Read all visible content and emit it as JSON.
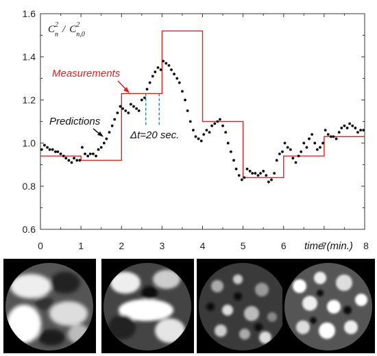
{
  "chart_data": {
    "type": "line",
    "title": "",
    "xlabel": "time (min.)",
    "ylabel_parts": {
      "num": "C",
      "num_sup": "2",
      "num_sub": "n",
      "slash": "/",
      "den": "C",
      "den_sup": "2",
      "den_sub": "n,0"
    },
    "xlim": [
      0,
      8
    ],
    "ylim": [
      0.6,
      1.6
    ],
    "xticks": [
      "0",
      "1",
      "2",
      "3",
      "4",
      "5",
      "6",
      "7",
      "8"
    ],
    "yticks": [
      "0.6",
      "0.8",
      "1.0",
      "1.2",
      "1.4",
      "1.6"
    ],
    "grid": false,
    "series": [
      {
        "name": "Measurements",
        "style": "step",
        "color": "#e02020",
        "x": [
          0,
          1,
          1,
          2,
          2,
          3,
          3,
          4,
          4,
          5,
          5,
          6,
          6,
          7,
          7,
          8
        ],
        "y": [
          0.94,
          0.94,
          0.92,
          0.92,
          1.23,
          1.23,
          1.52,
          1.52,
          1.1,
          1.1,
          0.84,
          0.84,
          0.94,
          0.94,
          1.03,
          1.03
        ]
      },
      {
        "name": "Predictions",
        "style": "points",
        "color": "#000000",
        "x": [
          0.03,
          0.1,
          0.17,
          0.23,
          0.3,
          0.37,
          0.43,
          0.5,
          0.57,
          0.63,
          0.7,
          0.77,
          0.83,
          0.9,
          0.97,
          1.03,
          1.1,
          1.17,
          1.23,
          1.3,
          1.37,
          1.43,
          1.5,
          1.57,
          1.63,
          1.7,
          1.77,
          1.83,
          1.9,
          1.97,
          2.03,
          2.1,
          2.17,
          2.23,
          2.3,
          2.37,
          2.43,
          2.5,
          2.57,
          2.63,
          2.7,
          2.77,
          2.83,
          2.9,
          2.97,
          3.03,
          3.1,
          3.17,
          3.23,
          3.3,
          3.37,
          3.43,
          3.5,
          3.57,
          3.63,
          3.7,
          3.77,
          3.83,
          3.9,
          3.97,
          4.03,
          4.1,
          4.17,
          4.23,
          4.3,
          4.37,
          4.43,
          4.5,
          4.57,
          4.63,
          4.7,
          4.77,
          4.83,
          4.9,
          4.97,
          5.03,
          5.1,
          5.17,
          5.23,
          5.3,
          5.37,
          5.43,
          5.5,
          5.57,
          5.63,
          5.7,
          5.77,
          5.83,
          5.9,
          5.97,
          6.03,
          6.1,
          6.17,
          6.23,
          6.3,
          6.37,
          6.43,
          6.5,
          6.57,
          6.63,
          6.7,
          6.77,
          6.83,
          6.9,
          6.97,
          7.03,
          7.1,
          7.17,
          7.23,
          7.3,
          7.37,
          7.43,
          7.5,
          7.57,
          7.63,
          7.7,
          7.77,
          7.83,
          7.9,
          7.97
        ],
        "y": [
          0.97,
          0.99,
          0.98,
          0.97,
          0.97,
          0.96,
          0.96,
          0.95,
          0.94,
          0.93,
          0.92,
          0.91,
          0.93,
          0.92,
          0.92,
          0.98,
          0.95,
          0.94,
          0.95,
          0.95,
          0.94,
          0.97,
          0.98,
          1.0,
          1.02,
          1.05,
          1.08,
          1.11,
          1.14,
          1.17,
          1.16,
          1.15,
          1.14,
          1.18,
          1.17,
          1.16,
          1.15,
          1.2,
          1.21,
          1.25,
          1.28,
          1.31,
          1.33,
          1.35,
          1.34,
          1.38,
          1.37,
          1.36,
          1.34,
          1.32,
          1.3,
          1.28,
          1.24,
          1.2,
          1.15,
          1.1,
          1.06,
          1.03,
          1.02,
          1.01,
          1.04,
          1.06,
          1.05,
          1.08,
          1.09,
          1.1,
          1.11,
          1.08,
          1.05,
          1.0,
          0.96,
          0.92,
          0.88,
          0.85,
          0.83,
          0.84,
          0.88,
          0.87,
          0.86,
          0.86,
          0.85,
          0.86,
          0.87,
          0.85,
          0.82,
          0.83,
          0.86,
          0.92,
          0.95,
          0.96,
          1.0,
          0.98,
          0.97,
          0.93,
          0.91,
          0.94,
          0.96,
          1.0,
          0.98,
          1.02,
          1.04,
          1.0,
          0.97,
          0.98,
          1.0,
          1.06,
          1.04,
          1.03,
          1.03,
          1.02,
          1.05,
          1.07,
          1.08,
          1.07,
          1.09,
          1.08,
          1.07,
          1.05,
          1.06,
          1.06
        ]
      }
    ],
    "annotations": {
      "measurements_label": "Measurements",
      "predictions_label": "Predictions",
      "interval_label": "Δt=20 sec.",
      "interval_bounds_min": [
        2.6,
        2.93
      ]
    }
  },
  "images": {
    "count": 4,
    "descriptions": [
      "turbulence-phase-screen-1",
      "turbulence-phase-screen-2",
      "turbulence-phase-screen-3",
      "turbulence-phase-screen-4"
    ]
  },
  "colors": {
    "measurements": "#e02020",
    "predictions": "#000000",
    "interval_marker": "#1f7fb8",
    "axis": "#333333"
  }
}
